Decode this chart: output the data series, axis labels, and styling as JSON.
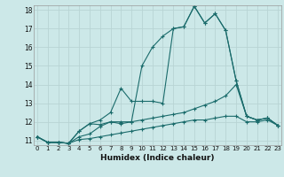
{
  "xlabel": "Humidex (Indice chaleur)",
  "bg_color": "#cce8e8",
  "grid_color": "#b8d4d4",
  "line_color": "#1a6b6b",
  "x_min": 0,
  "x_max": 23,
  "y_min": 11,
  "y_max": 18,
  "series": [
    [
      11.2,
      10.9,
      10.9,
      10.85,
      11.5,
      11.9,
      12.1,
      12.5,
      13.8,
      13.1,
      13.1,
      13.1,
      13.0,
      17.0,
      17.1,
      18.2,
      17.3,
      17.8,
      16.9,
      14.2,
      12.3,
      12.1,
      12.2,
      11.8
    ],
    [
      11.2,
      10.9,
      10.9,
      10.85,
      11.5,
      11.9,
      11.85,
      12.0,
      12.0,
      12.0,
      15.0,
      16.0,
      16.6,
      17.0,
      17.1,
      18.2,
      17.3,
      17.8,
      16.9,
      14.2,
      12.3,
      12.1,
      12.2,
      11.8
    ],
    [
      11.2,
      10.9,
      10.9,
      10.85,
      11.2,
      11.35,
      11.75,
      12.0,
      11.9,
      12.0,
      12.1,
      12.2,
      12.3,
      12.4,
      12.5,
      12.7,
      12.9,
      13.1,
      13.4,
      14.0,
      12.3,
      12.1,
      12.2,
      11.8
    ],
    [
      11.2,
      10.9,
      10.9,
      10.85,
      11.05,
      11.1,
      11.2,
      11.3,
      11.4,
      11.5,
      11.6,
      11.7,
      11.8,
      11.9,
      12.0,
      12.1,
      12.1,
      12.2,
      12.3,
      12.3,
      12.0,
      12.0,
      12.1,
      11.8
    ]
  ]
}
